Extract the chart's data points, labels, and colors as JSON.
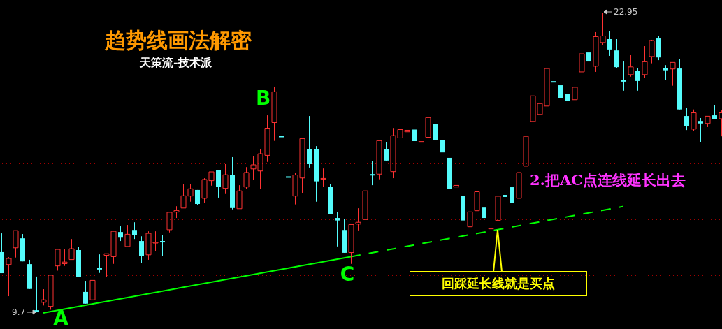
{
  "chart_data": {
    "type": "candlestick",
    "title": "趋势线画法解密",
    "subtitle": "天策流-技术派",
    "categories": [
      null,
      null,
      null,
      null,
      null,
      null,
      null,
      null,
      null,
      null,
      null,
      null,
      null,
      null,
      null,
      null,
      null,
      null,
      null,
      null,
      null,
      null,
      null,
      null,
      null,
      null,
      null,
      null,
      null,
      null,
      null,
      null,
      null,
      null,
      null,
      null,
      null,
      null,
      null,
      null,
      null,
      null,
      null,
      null,
      null,
      null,
      null,
      null,
      null,
      null,
      null,
      null,
      null,
      null,
      null,
      null,
      null,
      null,
      null,
      null,
      null,
      null,
      null,
      null,
      null,
      null,
      null,
      null,
      null,
      null,
      null,
      null,
      null,
      null,
      null,
      null,
      null,
      null,
      null,
      null,
      null,
      null,
      null,
      null,
      null,
      null,
      null,
      null,
      null,
      null,
      null,
      null,
      null,
      null,
      null,
      null,
      null,
      null,
      null,
      null,
      null,
      null,
      null,
      null
    ],
    "ohlc": [
      [
        12.36,
        13.19,
        11.43,
        11.43
      ],
      [
        11.81,
        12.14,
        10.41,
        12.08
      ],
      [
        12.55,
        13.31,
        12.12,
        13.31
      ],
      [
        12.97,
        13.16,
        11.95,
        11.95
      ],
      [
        11.83,
        12.02,
        10.73,
        10.73
      ],
      [
        9.79,
        11.28,
        9.7,
        9.7
      ],
      [
        10.14,
        10.72,
        10.0,
        10.25
      ],
      [
        9.96,
        11.34,
        9.81,
        11.34
      ],
      [
        11.75,
        12.48,
        11.54,
        12.48
      ],
      [
        11.85,
        12.48,
        11.75,
        11.92
      ],
      [
        12.03,
        12.94,
        12.03,
        12.51
      ],
      [
        12.45,
        12.6,
        11.25,
        11.25
      ],
      [
        10.6,
        11.09,
        10.08,
        10.08
      ],
      [
        10.25,
        11.11,
        10.25,
        11.11
      ],
      [
        11.67,
        12.26,
        11.44,
        11.59
      ],
      [
        12.22,
        12.29,
        11.25,
        12.29
      ],
      [
        12.16,
        13.31,
        11.84,
        13.28
      ],
      [
        13.25,
        13.5,
        12.85,
        13.0
      ],
      [
        12.61,
        13.56,
        12.61,
        13.15
      ],
      [
        13.34,
        13.68,
        12.94,
        13.1
      ],
      [
        12.85,
        13.06,
        11.89,
        12.2
      ],
      [
        12.24,
        13.28,
        12.02,
        13.19
      ],
      [
        12.77,
        13.28,
        12.39,
        12.79
      ],
      [
        12.82,
        13.1,
        12.2,
        12.8
      ],
      [
        13.35,
        14.12,
        13.23,
        14.12
      ],
      [
        14.13,
        14.39,
        13.87,
        14.2
      ],
      [
        14.31,
        15.38,
        14.31,
        14.85
      ],
      [
        14.84,
        15.38,
        14.59,
        15.16
      ],
      [
        15.11,
        15.11,
        14.46,
        14.49
      ],
      [
        14.74,
        15.63,
        14.53,
        15.57
      ],
      [
        15.52,
        15.91,
        15.3,
        15.91
      ],
      [
        16.0,
        16.0,
        14.77,
        15.26
      ],
      [
        15.18,
        16.25,
        14.93,
        15.78
      ],
      [
        15.78,
        16.56,
        14.25,
        14.31
      ],
      [
        14.28,
        15.32,
        14.28,
        15.07
      ],
      [
        15.24,
        16.12,
        15.15,
        15.88
      ],
      [
        16.04,
        16.59,
        15.55,
        16.22
      ],
      [
        15.95,
        16.9,
        15.15,
        16.71
      ],
      [
        16.64,
        18.41,
        16.35,
        17.84
      ],
      [
        18.09,
        19.68,
        17.28,
        19.45
      ],
      [
        17.47,
        17.47,
        17.47,
        17.47
      ],
      [
        15.68,
        15.68,
        15.68,
        15.68
      ],
      [
        14.84,
        15.88,
        14.47,
        15.77
      ],
      [
        15.64,
        17.38,
        14.96,
        17.38
      ],
      [
        16.9,
        18.38,
        16.1,
        16.25
      ],
      [
        16.9,
        17.05,
        14.59,
        15.49
      ],
      [
        15.61,
        16.06,
        15.24,
        15.62
      ],
      [
        15.26,
        15.38,
        14.03,
        14.03
      ],
      [
        13.87,
        14.15,
        12.61,
        13.76
      ],
      [
        13.34,
        13.84,
        12.33,
        12.33
      ],
      [
        12.34,
        13.58,
        11.84,
        13.58
      ],
      [
        13.6,
        14.3,
        13.32,
        13.68
      ],
      [
        13.8,
        15.07,
        13.8,
        15.07
      ],
      [
        15.78,
        16.4,
        15.32,
        15.77
      ],
      [
        15.81,
        17.29,
        15.58,
        17.29
      ],
      [
        16.9,
        17.21,
        16.41,
        16.41
      ],
      [
        15.92,
        17.85,
        15.63,
        17.51
      ],
      [
        17.41,
        18.01,
        17.21,
        17.78
      ],
      [
        17.68,
        18.13,
        17.17,
        17.75
      ],
      [
        17.78,
        17.98,
        17.08,
        17.27
      ],
      [
        17.24,
        18.13,
        16.74,
        17.25
      ],
      [
        17.44,
        18.38,
        16.96,
        18.31
      ],
      [
        18.04,
        18.38,
        17.17,
        17.3
      ],
      [
        17.3,
        17.42,
        15.97,
        16.77
      ],
      [
        16.53,
        16.62,
        15.04,
        15.14
      ],
      [
        15.24,
        15.97,
        14.89,
        15.31
      ],
      [
        14.83,
        14.83,
        13.76,
        13.76
      ],
      [
        13.48,
        14.52,
        13.05,
        14.14
      ],
      [
        14.19,
        15.14,
        14.03,
        15.03
      ],
      [
        14.33,
        14.83,
        13.81,
        13.87
      ],
      [
        13.4,
        13.72,
        13.08,
        13.42
      ],
      [
        13.76,
        14.83,
        13.68,
        14.83
      ],
      [
        14.89,
        14.95,
        14.61,
        14.8
      ],
      [
        15.23,
        15.38,
        14.24,
        14.52
      ],
      [
        14.74,
        16.0,
        14.61,
        15.88
      ],
      [
        16.16,
        17.48,
        15.94,
        17.48
      ],
      [
        18.14,
        19.27,
        17.52,
        19.27
      ],
      [
        18.45,
        19.18,
        18.41,
        18.93
      ],
      [
        18.82,
        20.85,
        18.64,
        20.48
      ],
      [
        19.89,
        20.97,
        19.49,
        19.88
      ],
      [
        19.74,
        20.11,
        18.84,
        19.18
      ],
      [
        19.34,
        20.05,
        18.84,
        19.03
      ],
      [
        19.1,
        20.39,
        18.69,
        19.65
      ],
      [
        20.33,
        21.59,
        19.74,
        21.13
      ],
      [
        21.19,
        21.5,
        20.66,
        20.79
      ],
      [
        20.58,
        22.09,
        20.33,
        21.89
      ],
      [
        21.63,
        22.95,
        21.51,
        21.92
      ],
      [
        21.78,
        22.15,
        21.04,
        21.32
      ],
      [
        21.28,
        21.78,
        20.51,
        20.54
      ],
      [
        19.93,
        20.79,
        19.5,
        19.92
      ],
      [
        20.21,
        21.07,
        20.12,
        20.55
      ],
      [
        20.39,
        20.51,
        19.5,
        19.93
      ],
      [
        20.21,
        21.47,
        20.06,
        20.78
      ],
      [
        21.01,
        21.75,
        20.71,
        21.72
      ],
      [
        21.81,
        21.93,
        20.85,
        20.97
      ],
      [
        20.51,
        20.63,
        19.96,
        20.4
      ],
      [
        20.46,
        20.75,
        19.72,
        20.75
      ],
      [
        20.48,
        20.91,
        18.67,
        18.67
      ],
      [
        18.38,
        18.75,
        17.76,
        17.95
      ],
      [
        17.8,
        18.67,
        17.71,
        18.52
      ],
      [
        18.16,
        18.29,
        17.21,
        18.05
      ],
      [
        18.05,
        18.37,
        17.89,
        18.37
      ],
      [
        18.41,
        18.87,
        18.23,
        18.23
      ],
      [
        18.26,
        18.63,
        17.48,
        18.52
      ]
    ],
    "colors": [
      "#54fcfc",
      "#ff3232",
      "#ff3232",
      "#54fcfc",
      "#54fcfc",
      "#54fcfc",
      "#ff3232",
      "#ff3232",
      "#ff3232",
      "#ff3232",
      "#ff3232",
      "#54fcfc",
      "#54fcfc",
      "#ff3232",
      "#54fcfc",
      "#ff3232",
      "#ff3232",
      "#54fcfc",
      "#ff3232",
      "#54fcfc",
      "#54fcfc",
      "#ff3232",
      "#ff3232",
      "#54fcfc",
      "#ff3232",
      "#ff3232",
      "#ff3232",
      "#ff3232",
      "#54fcfc",
      "#ff3232",
      "#ff3232",
      "#54fcfc",
      "#ff3232",
      "#54fcfc",
      "#ff3232",
      "#ff3232",
      "#ff3232",
      "#ff3232",
      "#ff3232",
      "#ff3232",
      "#54fcfc",
      "#54fcfc",
      "#ff3232",
      "#ff3232",
      "#54fcfc",
      "#54fcfc",
      "#ff3232",
      "#54fcfc",
      "#54fcfc",
      "#54fcfc",
      "#ff3232",
      "#ff3232",
      "#ff3232",
      "#54fcfc",
      "#ff3232",
      "#54fcfc",
      "#ff3232",
      "#ff3232",
      "#ff3232",
      "#54fcfc",
      "#ff3232",
      "#ff3232",
      "#54fcfc",
      "#54fcfc",
      "#54fcfc",
      "#ff3232",
      "#54fcfc",
      "#ff3232",
      "#ff3232",
      "#54fcfc",
      "#ff3232",
      "#ff3232",
      "#54fcfc",
      "#54fcfc",
      "#ff3232",
      "#ff3232",
      "#ff3232",
      "#ff3232",
      "#ff3232",
      "#54fcfc",
      "#54fcfc",
      "#54fcfc",
      "#ff3232",
      "#ff3232",
      "#54fcfc",
      "#ff3232",
      "#ff3232",
      "#54fcfc",
      "#54fcfc",
      "#54fcfc",
      "#ff3232",
      "#54fcfc",
      "#ff3232",
      "#ff3232",
      "#54fcfc",
      "#54fcfc",
      "#ff3232",
      "#54fcfc",
      "#54fcfc",
      "#ff3232",
      "#54fcfc",
      "#ff3232",
      "#54fcfc",
      "#ff3232"
    ],
    "series": [
      {
        "type": "line",
        "color": "#00ff00",
        "line_style": "solid",
        "values": [
          null,
          null,
          null,
          null,
          null,
          null,
          9.67,
          null,
          null,
          null,
          null,
          null,
          null,
          null,
          null,
          null,
          null,
          null,
          null,
          null,
          null,
          null,
          null,
          null,
          null,
          null,
          null,
          null,
          null,
          null,
          null,
          null,
          null,
          null,
          null,
          null,
          null,
          null,
          null,
          null,
          null,
          null,
          null,
          null,
          null,
          null,
          null,
          null,
          null,
          null,
          12.16,
          null,
          null,
          null,
          null,
          null,
          null,
          null,
          null,
          null,
          null,
          null,
          null,
          null,
          null,
          null,
          null,
          null,
          null,
          null,
          null,
          null,
          null,
          null,
          null,
          null,
          null,
          null,
          null,
          null,
          null,
          null,
          null,
          null,
          null,
          null,
          null,
          null,
          null,
          null,
          null,
          null,
          null,
          null,
          null,
          null,
          null,
          null,
          null,
          null,
          null,
          null,
          null,
          null
        ]
      },
      {
        "type": "line",
        "color": "#00ff00",
        "line_style": "dashed",
        "values": [
          null,
          null,
          null,
          null,
          null,
          null,
          null,
          null,
          null,
          null,
          null,
          null,
          null,
          null,
          null,
          null,
          null,
          null,
          null,
          null,
          null,
          null,
          null,
          null,
          null,
          null,
          null,
          null,
          null,
          null,
          null,
          null,
          null,
          null,
          null,
          null,
          null,
          null,
          null,
          null,
          null,
          null,
          null,
          null,
          null,
          null,
          null,
          null,
          null,
          null,
          12.16,
          null,
          null,
          null,
          null,
          null,
          null,
          null,
          null,
          null,
          null,
          null,
          null,
          null,
          null,
          null,
          null,
          null,
          null,
          null,
          null,
          null,
          null,
          null,
          null,
          null,
          null,
          null,
          null,
          null,
          null,
          null,
          null,
          null,
          null,
          null,
          null,
          null,
          null,
          14.38,
          null,
          null,
          null,
          null,
          null,
          null,
          null,
          null,
          null,
          null,
          null,
          null,
          null,
          null
        ]
      }
    ],
    "ylim": [
      8.96,
      23.51
    ],
    "yticks": [
      {
        "value": 11.33,
        "label": null
      },
      {
        "value": 13.8,
        "label": null
      },
      {
        "value": 16.27,
        "label": null
      },
      {
        "value": 18.74,
        "label": null
      },
      {
        "value": 21.21,
        "label": null
      }
    ],
    "grid": "y",
    "tick_labels": false,
    "legend": false,
    "marker": "none",
    "annotations": [
      {
        "text": "A",
        "y": 9.67
      },
      {
        "text": "C",
        "y": 12.16
      },
      "B",
      "22.95",
      "9.7",
      "2.把AC点连线延长出去",
      "回踩延长线就是买点"
    ]
  }
}
